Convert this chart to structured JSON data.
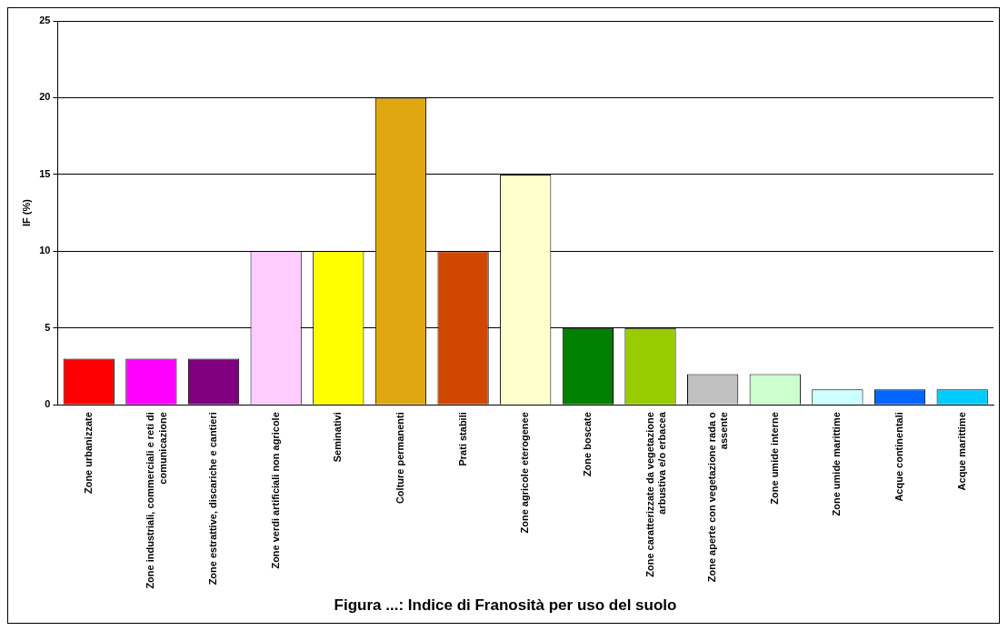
{
  "chart_data": {
    "type": "bar",
    "title": "Figura ...: Indice di Franosità per uso del suolo",
    "ylabel": "IF (%)",
    "categories": [
      "Zone urbanizzate",
      "Zone industriali, commerciali e reti di comunicazione",
      "Zone estrattive, discariche e cantieri",
      "Zone verdi artificiali non agricole",
      "Seminativi",
      "Colture permanenti",
      "Prati stabili",
      "Zone agricole eterogenee",
      "Zone boscate",
      "Zone caratterizzate da vegetazione arbustiva e/o erbacea",
      "Zone aperte con vegetazione rada o assente",
      "Zone umide interne",
      "Zone umide marittime",
      "Acque continentali",
      "Acque marittime"
    ],
    "values": [
      3,
      3,
      3,
      10,
      10,
      20,
      10,
      15,
      5,
      5,
      2,
      2,
      1,
      1,
      1
    ],
    "colors": [
      "#ff0000",
      "#ff00ff",
      "#800080",
      "#ffccff",
      "#ffff00",
      "#e0a810",
      "#d04800",
      "#ffffcc",
      "#008000",
      "#99cc00",
      "#c0c0c0",
      "#ccffcc",
      "#ccffff",
      "#0066ff",
      "#00ccff"
    ],
    "ylim": [
      0,
      25
    ],
    "yticks": [
      0,
      5,
      10,
      15,
      20,
      25
    ],
    "grid": "y"
  }
}
